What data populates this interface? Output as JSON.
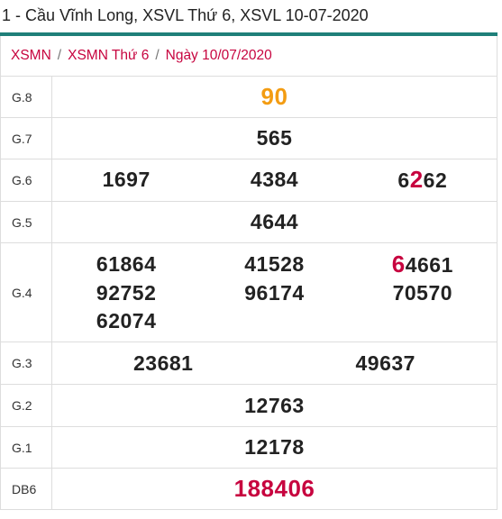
{
  "title": "1 - Cầu Vĩnh Long, XSVL Thứ 6, XSVL 10-07-2020",
  "breadcrumb": [
    "XSMN",
    "XSMN Thứ 6",
    "Ngày 10/07/2020"
  ],
  "breadcrumb_separator": "/",
  "colors": {
    "accent": "#1f7f79",
    "highlight": "#c7043f",
    "g8": "#f39c12"
  },
  "rows": [
    {
      "label": "G.8",
      "cols": 1,
      "numbers": [
        {
          "text": "90",
          "style": "orange"
        }
      ],
      "height": 46
    },
    {
      "label": "G.7",
      "cols": 1,
      "numbers": [
        {
          "text": "565"
        }
      ],
      "height": 46
    },
    {
      "label": "G.6",
      "cols": 3,
      "numbers": [
        {
          "text": "1697"
        },
        {
          "text": "4384"
        },
        {
          "pre": "6",
          "hl": "2",
          "post": "62"
        }
      ],
      "height": 47
    },
    {
      "label": "G.5",
      "cols": 1,
      "numbers": [
        {
          "text": "4644"
        }
      ],
      "height": 46
    },
    {
      "label": "G.4",
      "cols": 3,
      "numbers": [
        {
          "text": "61864"
        },
        {
          "text": "41528"
        },
        {
          "pre": "",
          "hl": "6",
          "post": "4661"
        },
        {
          "text": "92752"
        },
        {
          "text": "96174"
        },
        {
          "text": "70570"
        },
        {
          "text": "62074"
        }
      ],
      "height": 110
    },
    {
      "label": "G.3",
      "cols": 2,
      "numbers": [
        {
          "text": "23681"
        },
        {
          "text": "49637"
        }
      ],
      "height": 47
    },
    {
      "label": "G.2",
      "cols": 1,
      "numbers": [
        {
          "text": "12763"
        }
      ],
      "height": 47
    },
    {
      "label": "G.1",
      "cols": 1,
      "numbers": [
        {
          "text": "12178"
        }
      ],
      "height": 46
    },
    {
      "label": "DB6",
      "cols": 1,
      "numbers": [
        {
          "text": "188406",
          "style": "red"
        }
      ],
      "height": 46
    }
  ]
}
